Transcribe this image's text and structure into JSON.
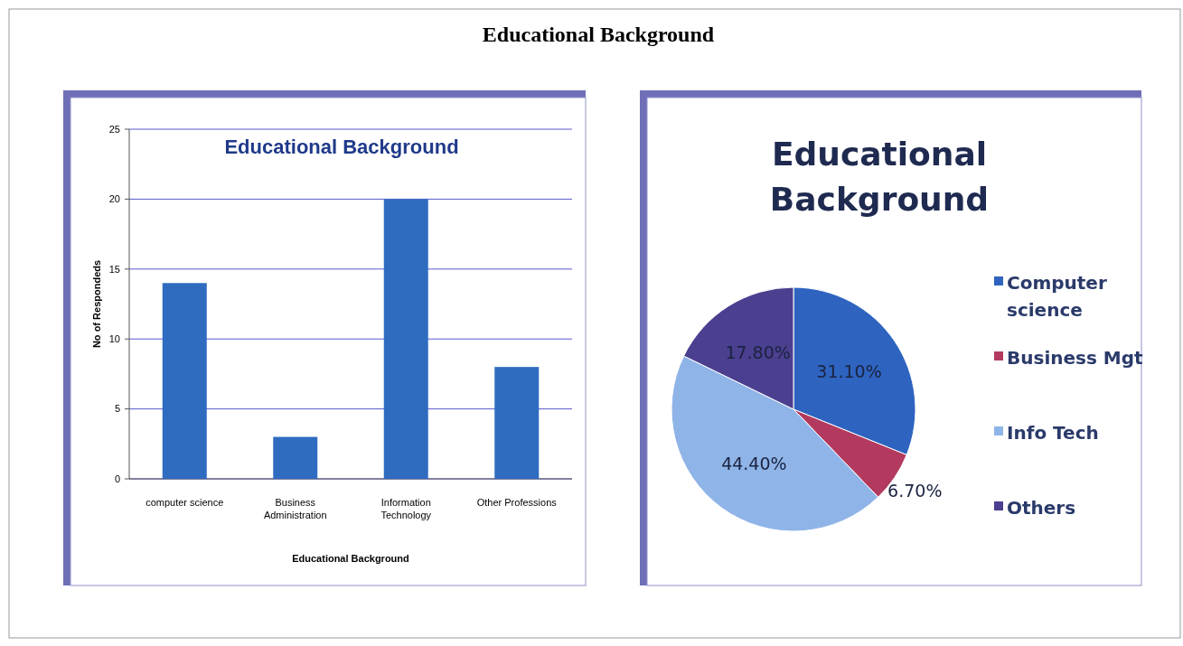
{
  "chart_data": [
    {
      "type": "other",
      "title": "Educational Background"
    },
    {
      "type": "bar",
      "title": "Educational Background",
      "xlabel": "Educational Background",
      "ylabel": "No of Respondeds",
      "categories": [
        "computer science",
        "Business Administration",
        "Information Technology",
        "Other Professions"
      ],
      "values": [
        14,
        3,
        20,
        8
      ],
      "color": "#2f6cc0",
      "ylim": [
        0,
        25
      ],
      "yticks": [
        0,
        5,
        10,
        15,
        20,
        25
      ],
      "grid": "y"
    },
    {
      "type": "pie",
      "title": "Educational Background",
      "categories": [
        "Computer science",
        "Business Mgt",
        "Info Tech",
        "Others"
      ],
      "values": [
        31.1,
        6.7,
        44.4,
        17.8
      ],
      "value_labels": [
        "31.10%",
        "6.70%",
        "44.40%",
        "17.80%"
      ],
      "colors": [
        "#2e64c0",
        "#b33a5e",
        "#8fb4e8",
        "#4b3f8f"
      ],
      "legend": "right"
    }
  ]
}
